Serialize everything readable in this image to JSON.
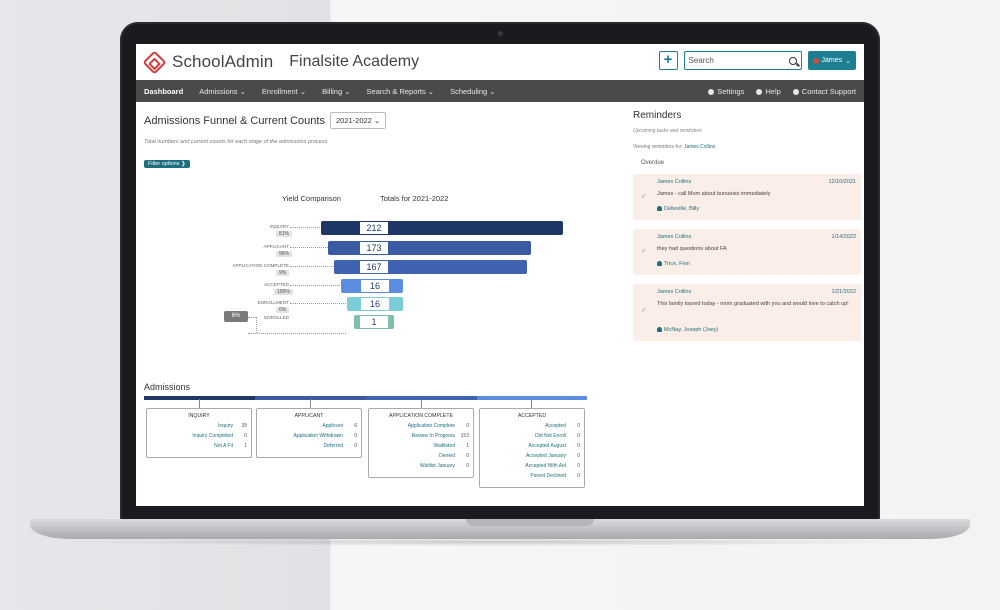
{
  "header": {
    "logo_text": "SchoolAdmin",
    "school_name": "Finalsite Academy"
  },
  "search": {
    "placeholder": "Search"
  },
  "user": {
    "name": "James"
  },
  "nav": {
    "items": [
      "Dashboard",
      "Admissions ⌄",
      "Enrollment ⌄",
      "Billing ⌄",
      "Search & Reports ⌄",
      "Scheduling ⌄"
    ],
    "right": [
      "Settings",
      "Help",
      "Contact Support"
    ]
  },
  "funnel": {
    "title": "Admissions Funnel & Current Counts",
    "year": "2021-2022 ⌄",
    "subtitle": "Total numbers and current counts for each stage of the admissions process",
    "filter_label": "Filter options ❯",
    "col_yield": "Yield Comparison",
    "col_totals": "Totals for 2021-2022",
    "big_pct": "6%"
  },
  "chart_data": {
    "type": "bar",
    "categories": [
      "INQUIRY",
      "APPLICANT",
      "APPLICATION COMPLETE",
      "ACCEPTED",
      "ENROLLMENT",
      "ENROLLED"
    ],
    "values": [
      212,
      173,
      167,
      16,
      16,
      1
    ],
    "percents": [
      "81%",
      "96%",
      "9%",
      "100%",
      "6%"
    ]
  },
  "admissions": {
    "title": "Admissions",
    "groups": [
      {
        "title": "Inquiry",
        "rows": [
          [
            "Inquiry",
            "39"
          ],
          [
            "Inquiry Completed",
            "0"
          ],
          [
            "Not A Fit",
            "1"
          ]
        ]
      },
      {
        "title": "Applicant",
        "rows": [
          [
            "Applicant",
            "6"
          ],
          [
            "Application Withdrawn",
            "0"
          ],
          [
            "Deferred",
            "0"
          ]
        ]
      },
      {
        "title": "Application Complete",
        "rows": [
          [
            "Application Complete",
            "0"
          ],
          [
            "Review In Progress",
            "153"
          ],
          [
            "Waitlisted",
            "1"
          ],
          [
            "Denied",
            "0"
          ],
          [
            "Waitlist January",
            "0"
          ]
        ]
      },
      {
        "title": "Accepted",
        "rows": [
          [
            "Accepted",
            "0"
          ],
          [
            "Did Not Enroll",
            "0"
          ],
          [
            "Accepted August",
            "0"
          ],
          [
            "Accepted January",
            "0"
          ],
          [
            "Accepted With Aid",
            "0"
          ],
          [
            "Parent Declined",
            "0"
          ]
        ]
      }
    ]
  },
  "reminders": {
    "title": "Reminders",
    "subtitle": "Upcoming tasks and reminders",
    "viewing_label": "Viewing reminders for:",
    "viewing_name": "James Collins",
    "overdue": "Overdue",
    "items": [
      {
        "who": "James Collins",
        "date": "12/10/2021",
        "message": "James - call Mom about bursaries immediately",
        "contact": "Delleville, Billy"
      },
      {
        "who": "James Collins",
        "date": "1/14/2022",
        "message": "they had questions about FA",
        "contact": "Trice, Finn"
      },
      {
        "who": "James Collins",
        "date": "1/21/2022",
        "message": "This family toured today - mom graduated with you and would love to catch up!",
        "contact": "McNay, Joseph (Joey)"
      }
    ]
  },
  "colors": {
    "accent": "#1d7f91",
    "nav": "#4a4a4a",
    "bar_dark": "#1f3766",
    "bar_mid": "#3f63b0",
    "bar_light": "#5d8de0",
    "bar_teal": "#7ccbd6",
    "reminder_bg": "#fbede7"
  }
}
